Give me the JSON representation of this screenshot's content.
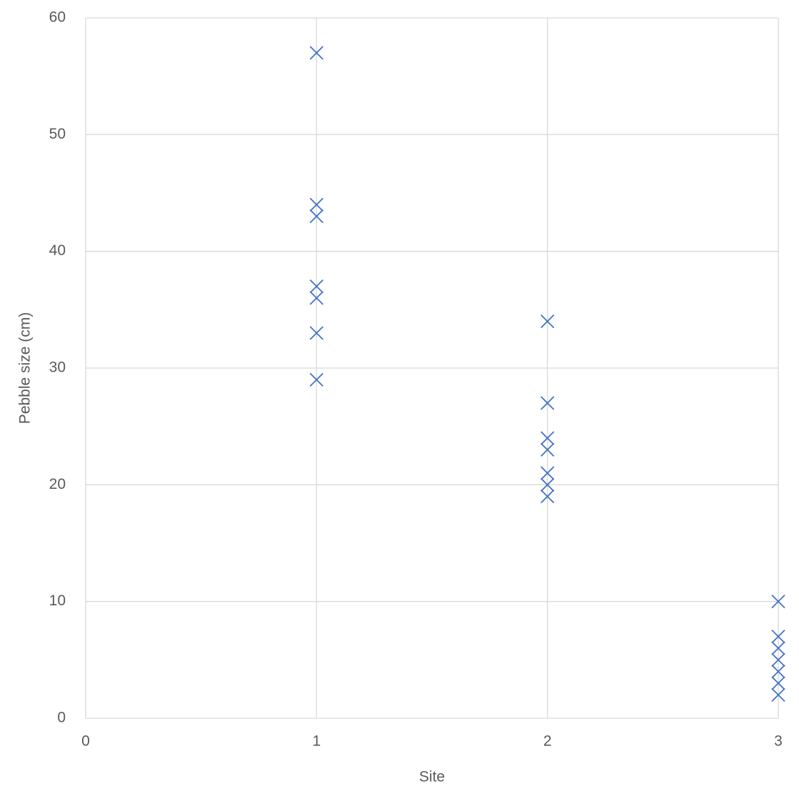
{
  "chart_data": {
    "type": "scatter",
    "x_label": "Site",
    "y_label": "Pebble size (cm)",
    "series": [
      {
        "color": "#4472c4",
        "x": [
          1,
          1,
          1,
          1,
          1,
          1,
          1,
          2,
          2,
          2,
          2,
          2,
          2,
          2,
          3,
          3,
          3,
          3,
          3,
          3,
          3
        ],
        "values": [
          57,
          44,
          43,
          37,
          36,
          33,
          29,
          34,
          27,
          24,
          23,
          21,
          20,
          19,
          10,
          7,
          6,
          5,
          4,
          3,
          2
        ]
      }
    ],
    "xlim": [
      0,
      3
    ],
    "xticks": [
      0,
      1,
      2,
      3
    ],
    "ylim": [
      0,
      60
    ],
    "yticks": [
      0,
      10,
      20,
      30,
      40,
      50,
      60
    ],
    "grid": true,
    "marker": "x"
  }
}
